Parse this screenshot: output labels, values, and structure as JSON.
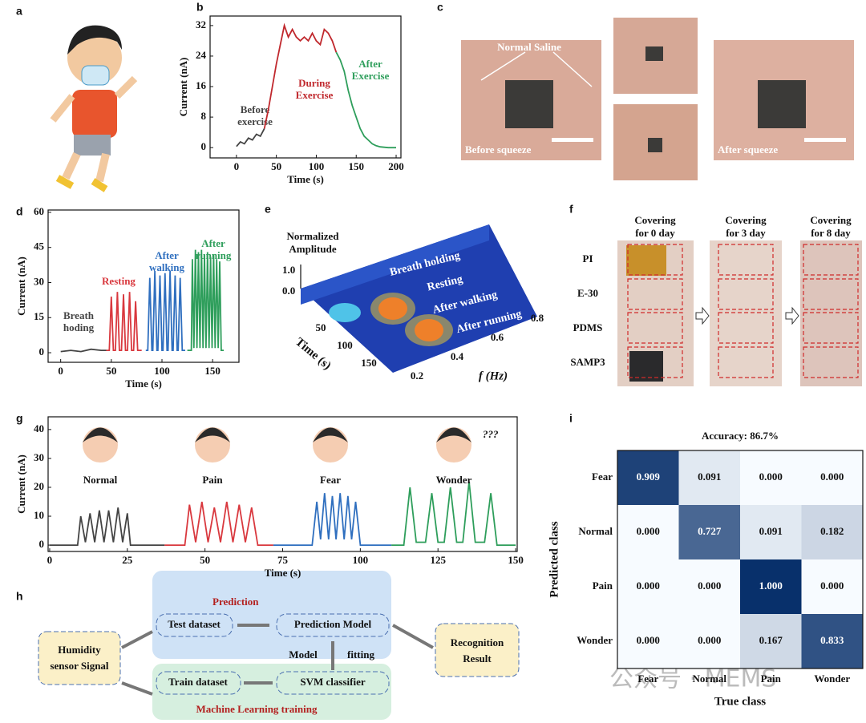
{
  "panel_labels": [
    "a",
    "b",
    "c",
    "d",
    "e",
    "f",
    "g",
    "h",
    "i"
  ],
  "chart_data": [
    {
      "type": "line",
      "xlabel": "Time (s)",
      "ylabel": "Current (nA)",
      "xlim": [
        -33,
        206
      ],
      "ylim": [
        -2.7,
        34.5
      ],
      "xticks": [
        0,
        50,
        100,
        150,
        200
      ],
      "yticks": [
        0,
        8,
        16,
        24,
        32
      ],
      "series": [
        {
          "name": "Before exercise",
          "color": "#444444",
          "x": [
            0,
            5,
            10,
            15,
            20,
            25,
            30,
            35
          ],
          "values": [
            0.3,
            1.5,
            1,
            2.5,
            2,
            3.5,
            3,
            5
          ]
        },
        {
          "name": "During Exercise",
          "color": "#c0282d",
          "x": [
            35,
            40,
            45,
            50,
            55,
            60,
            65,
            70,
            75,
            80,
            85,
            90,
            95,
            100,
            105,
            110,
            115,
            120,
            125
          ],
          "values": [
            5,
            10,
            16,
            22,
            27,
            32,
            29,
            31,
            29,
            28,
            29,
            28,
            30,
            28,
            27,
            31,
            30,
            28,
            25
          ]
        },
        {
          "name": "After Exercise",
          "color": "#2e9e5b",
          "x": [
            125,
            130,
            135,
            140,
            145,
            150,
            155,
            160,
            165,
            170,
            175,
            180,
            190,
            200
          ],
          "values": [
            25,
            23,
            20,
            15,
            11,
            8,
            5,
            3,
            2,
            1,
            0.5,
            0.2,
            0,
            0
          ]
        }
      ]
    },
    {
      "type": "line",
      "xlabel": "Time (s)",
      "ylabel": "Current (nA)",
      "xlim": [
        -12.4,
        176
      ],
      "ylim": [
        -4.1,
        61
      ],
      "xticks": [
        0,
        50,
        100,
        150
      ],
      "yticks": [
        0,
        15,
        30,
        45,
        60
      ],
      "series": [
        {
          "name": "Breath hoding",
          "color": "#444444",
          "x": [
            0,
            10,
            20,
            30,
            40,
            45
          ],
          "values": [
            0.5,
            1,
            0.5,
            1.5,
            1,
            1
          ]
        },
        {
          "name": "Resting",
          "color": "#d9383e",
          "x": [
            45,
            48,
            50,
            52,
            54,
            56,
            58,
            60,
            62,
            64,
            66,
            68,
            70,
            72,
            74,
            76,
            80
          ],
          "values": [
            1,
            1,
            24,
            1,
            1,
            26,
            1,
            1,
            25,
            1,
            1,
            26,
            1,
            1,
            22,
            1,
            1
          ]
        },
        {
          "name": "After walking",
          "color": "#2f6fbf",
          "x": [
            84,
            86,
            88,
            90,
            91,
            93,
            95,
            96,
            98,
            100,
            101,
            103,
            105,
            106,
            108,
            110,
            111,
            113,
            115,
            116,
            118,
            120,
            123
          ],
          "values": [
            1,
            1,
            32,
            1,
            1,
            35,
            1,
            1,
            33,
            1,
            1,
            34,
            1,
            1,
            35,
            1,
            1,
            33,
            1,
            1,
            32,
            1,
            1
          ]
        },
        {
          "name": "After running",
          "color": "#2e9e5b",
          "x": [
            125,
            129,
            130,
            131.5,
            133,
            134.5,
            136,
            137.5,
            139,
            140.5,
            142,
            143.5,
            145,
            146.5,
            148,
            149.5,
            151,
            152.5,
            154,
            155.5,
            157,
            158.5,
            161
          ],
          "values": [
            1,
            1,
            40,
            2,
            44,
            2,
            43,
            2,
            44,
            2,
            42,
            2,
            43,
            2,
            41,
            2,
            42,
            2,
            40,
            2,
            39,
            1,
            1
          ]
        }
      ]
    },
    {
      "type": "line",
      "xlabel": "Time (s)",
      "ylabel": "Current (nA)",
      "xlim": [
        -0.5,
        150.5
      ],
      "ylim": [
        -2.2,
        44.4
      ],
      "xticks": [
        0,
        25,
        50,
        75,
        100,
        125,
        150
      ],
      "yticks": [
        0,
        10,
        20,
        30,
        40
      ],
      "annotations": [
        "???"
      ],
      "series": [
        {
          "name": "Normal",
          "color": "#444444",
          "x": [
            0,
            9,
            10,
            11.5,
            13,
            14.5,
            16,
            17.5,
            19,
            20.5,
            22,
            23.5,
            25,
            26,
            37
          ],
          "values": [
            0,
            0,
            10,
            1,
            11,
            1,
            12,
            1,
            12,
            1,
            13,
            1,
            11,
            0,
            0
          ]
        },
        {
          "name": "Pain",
          "color": "#d9383e",
          "x": [
            37,
            43.5,
            45,
            47,
            49,
            51,
            53,
            55,
            57,
            59,
            61,
            63,
            65,
            67,
            72
          ],
          "values": [
            0,
            0,
            14,
            1,
            15,
            1,
            13,
            1,
            15,
            1,
            14,
            1,
            13,
            0,
            0
          ]
        },
        {
          "name": "Fear",
          "color": "#2f6fbf",
          "x": [
            72,
            84.5,
            86,
            87.2,
            88.5,
            89.8,
            91,
            92.2,
            93.5,
            94.8,
            96,
            97.2,
            98.5,
            100,
            110
          ],
          "values": [
            0,
            0,
            15,
            2,
            18,
            2,
            17,
            2,
            18,
            2,
            17,
            2,
            15,
            0,
            0
          ]
        },
        {
          "name": "Wonder",
          "color": "#2e9e5b",
          "x": [
            110,
            114,
            116,
            118,
            121,
            123,
            125,
            127,
            129,
            131,
            133,
            135,
            137,
            140,
            142,
            144,
            150
          ],
          "values": [
            0,
            0,
            20,
            1,
            1,
            18,
            1,
            1,
            20,
            1,
            1,
            22,
            1,
            1,
            18,
            0,
            0
          ]
        }
      ]
    },
    {
      "type": "heatmap",
      "title": "Accuracy: 86.7%",
      "xlabel": "True class",
      "ylabel": "Predicted class",
      "categories": [
        "Fear",
        "Normal",
        "Pain",
        "Wonder"
      ],
      "values": [
        [
          0.909,
          0.091,
          0,
          0
        ],
        [
          0,
          0.727,
          0.091,
          0.182
        ],
        [
          0,
          0,
          1,
          0
        ],
        [
          0,
          0,
          0.167,
          0.833
        ]
      ],
      "value_labels": [
        [
          "0.909",
          "0.091",
          "0.000",
          "0.000"
        ],
        [
          "0.000",
          "0.727",
          "0.091",
          "0.182"
        ],
        [
          "0.000",
          "0.000",
          "1.000",
          "0.000"
        ],
        [
          "0.000",
          "0.000",
          "0.167",
          "0.833"
        ]
      ]
    }
  ],
  "panel_c": {
    "label": "Normal Saline",
    "before": "Before squeeze",
    "after": "After squeeze"
  },
  "panel_e": {
    "zlabel": [
      "Normalized",
      "Amplitude"
    ],
    "zticks": [
      "1.0",
      "0.0"
    ],
    "traces": [
      "Breath holding",
      "Resting",
      "After walking",
      "After running"
    ],
    "ylabel": "Time (s)",
    "yticks": [
      "50",
      "100",
      "150"
    ],
    "xlabel": "f (Hz)",
    "xticks": [
      "0.2",
      "0.4",
      "0.6",
      "0.8"
    ]
  },
  "panel_f": {
    "columns": [
      [
        "Covering",
        "for 0 day"
      ],
      [
        "Covering",
        "for 3 day"
      ],
      [
        "Covering",
        "for 8 day"
      ]
    ],
    "rows": [
      "PI",
      "E-30",
      "PDMS",
      "SAMP3"
    ]
  },
  "panel_h": {
    "prediction": "Prediction",
    "test": "Test dataset",
    "model": "Prediction Model",
    "fit1": "Model",
    "fit2": "fitting",
    "input": [
      "Humidity",
      "sensor Signal"
    ],
    "train": "Train dataset",
    "svm": "SVM classifier",
    "training": "Machine Learning training",
    "result": [
      "Recognition",
      "Result"
    ]
  },
  "watermark": "公众号 · MEMS"
}
